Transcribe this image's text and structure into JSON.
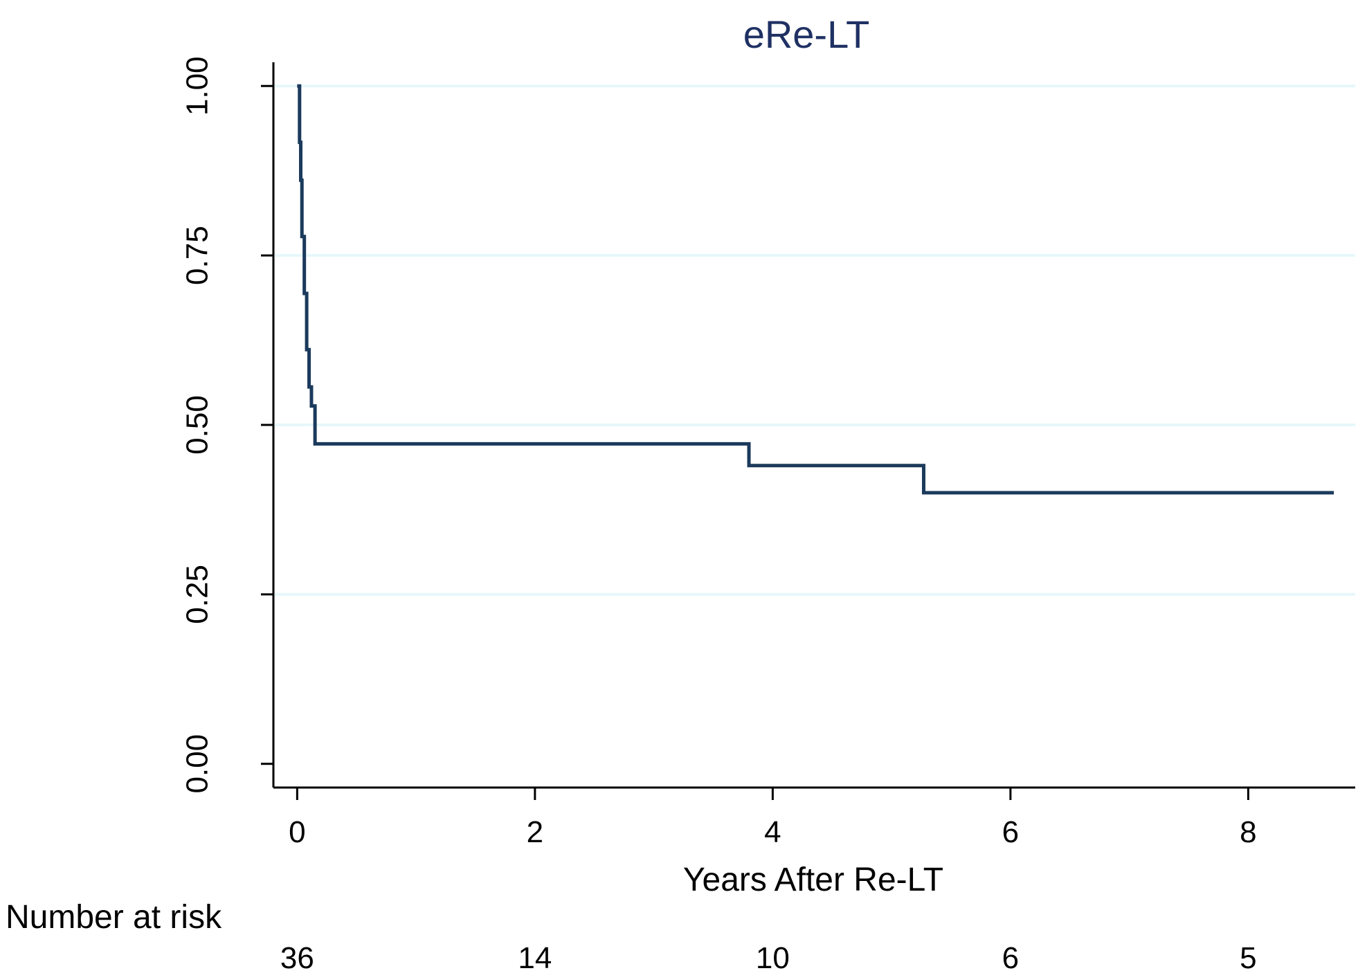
{
  "chart_data": {
    "type": "line",
    "title": "eRe-LT",
    "xlabel": "Years After Re-LT",
    "ylabel": "",
    "xlim": [
      -0.2,
      8.9
    ],
    "ylim": [
      -0.035,
      1.035
    ],
    "x_ticks": [
      0,
      2,
      4,
      6,
      8
    ],
    "x_tick_labels": [
      "0",
      "2",
      "4",
      "6",
      "8"
    ],
    "y_ticks": [
      0,
      0.25,
      0.5,
      0.75,
      1.0
    ],
    "y_tick_labels": [
      "0.00",
      "0.25",
      "0.50",
      "0.75",
      "1.00"
    ],
    "grid": "horizontal",
    "step": true,
    "series": [
      {
        "x": [
          0,
          0.02,
          0.03,
          0.04,
          0.06,
          0.08,
          0.1,
          0.12,
          0.15,
          3.8,
          5.27,
          8.72
        ],
        "y": [
          1.0,
          0.917,
          0.861,
          0.778,
          0.694,
          0.611,
          0.556,
          0.528,
          0.472,
          0.44,
          0.4,
          0.35
        ]
      }
    ],
    "risk_table": {
      "label": "Number at risk",
      "x": [
        0,
        2,
        4,
        6,
        8
      ],
      "values": [
        "36",
        "14",
        "10",
        "6",
        "5"
      ]
    },
    "colors": {
      "line": "#1b3a5c",
      "title": "#1f3163",
      "grid": "#e6f7fa",
      "axis": "#000000"
    }
  }
}
